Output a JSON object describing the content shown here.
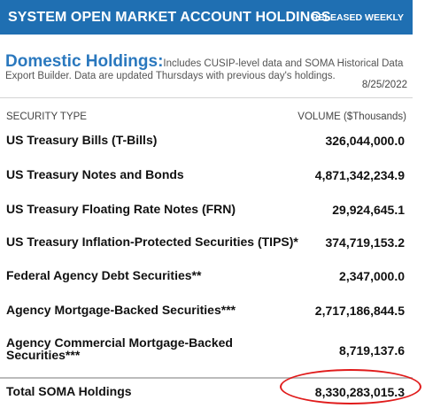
{
  "header": {
    "title": "SYSTEM OPEN MARKET ACCOUNT HOLDINGS",
    "badge": "RELEASED WEEKLY"
  },
  "intro": {
    "heading": "Domestic Holdings:",
    "text": "Includes CUSIP-level data and SOMA Historical Data Export Builder. Data are updated Thursdays with previous day's holdings.",
    "date": "8/25/2022"
  },
  "table": {
    "col_security": "SECURITY TYPE",
    "col_volume": "VOLUME ($Thousands)",
    "rows": [
      {
        "label": "US Treasury Bills (T-Bills)",
        "value": "326,044,000.0"
      },
      {
        "label": "US Treasury Notes and Bonds",
        "value": "4,871,342,234.9"
      },
      {
        "label": "US Treasury Floating Rate Notes (FRN)",
        "value": "29,924,645.1"
      },
      {
        "label": "US Treasury Inflation-Protected Securities (TIPS)*",
        "value": "374,719,153.2"
      },
      {
        "label": "Federal Agency Debt Securities**",
        "value": "2,347,000.0"
      },
      {
        "label": "Agency Mortgage-Backed Securities***",
        "value": "2,717,186,844.5"
      },
      {
        "label": "Agency Commercial Mortgage-Backed Securities***",
        "value": "8,719,137.6"
      }
    ],
    "total": {
      "label": "Total SOMA Holdings",
      "value": "8,330,283,015.3"
    }
  },
  "colors": {
    "header_bg": "#1f6fb2",
    "heading": "#2a78be",
    "highlight": "#e01b1b"
  }
}
